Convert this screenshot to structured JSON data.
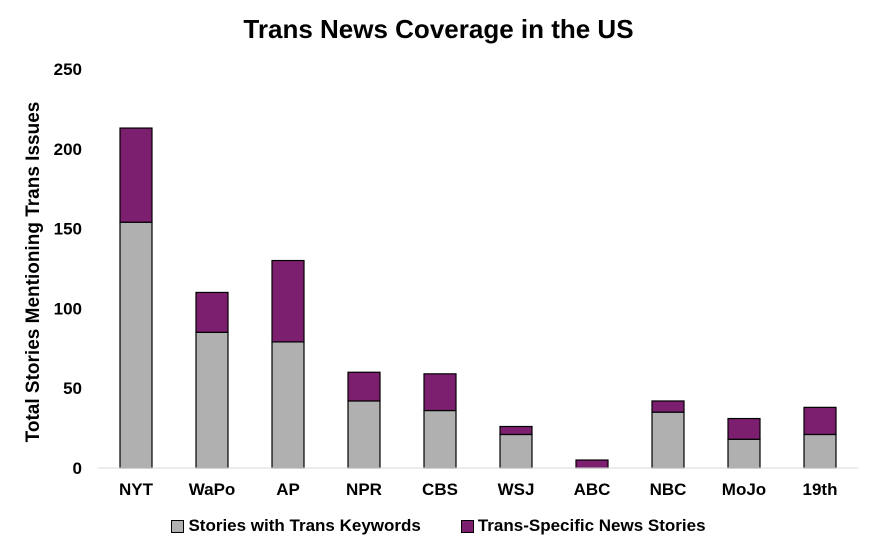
{
  "chart_data": {
    "type": "bar",
    "stacked": true,
    "title": "Trans News Coverage in the US",
    "xlabel": "",
    "ylabel": "Total Stories Mentioning Trans Issues",
    "ylim": [
      0,
      250
    ],
    "yticks": [
      0,
      50,
      100,
      150,
      200,
      250
    ],
    "grid": false,
    "legend_position": "bottom",
    "categories": [
      "NYT",
      "WaPo",
      "AP",
      "NPR",
      "CBS",
      "WSJ",
      "ABC",
      "NBC",
      "MoJo",
      "19th"
    ],
    "series": [
      {
        "name": "Stories with Trans Keywords",
        "color": "#b0b0b0",
        "values": [
          154,
          85,
          79,
          42,
          36,
          21,
          0,
          35,
          18,
          21
        ]
      },
      {
        "name": "Trans-Specific News Stories",
        "color": "#7b1f6e",
        "values": [
          59,
          25,
          51,
          18,
          23,
          5,
          5,
          7,
          13,
          17
        ]
      }
    ]
  }
}
